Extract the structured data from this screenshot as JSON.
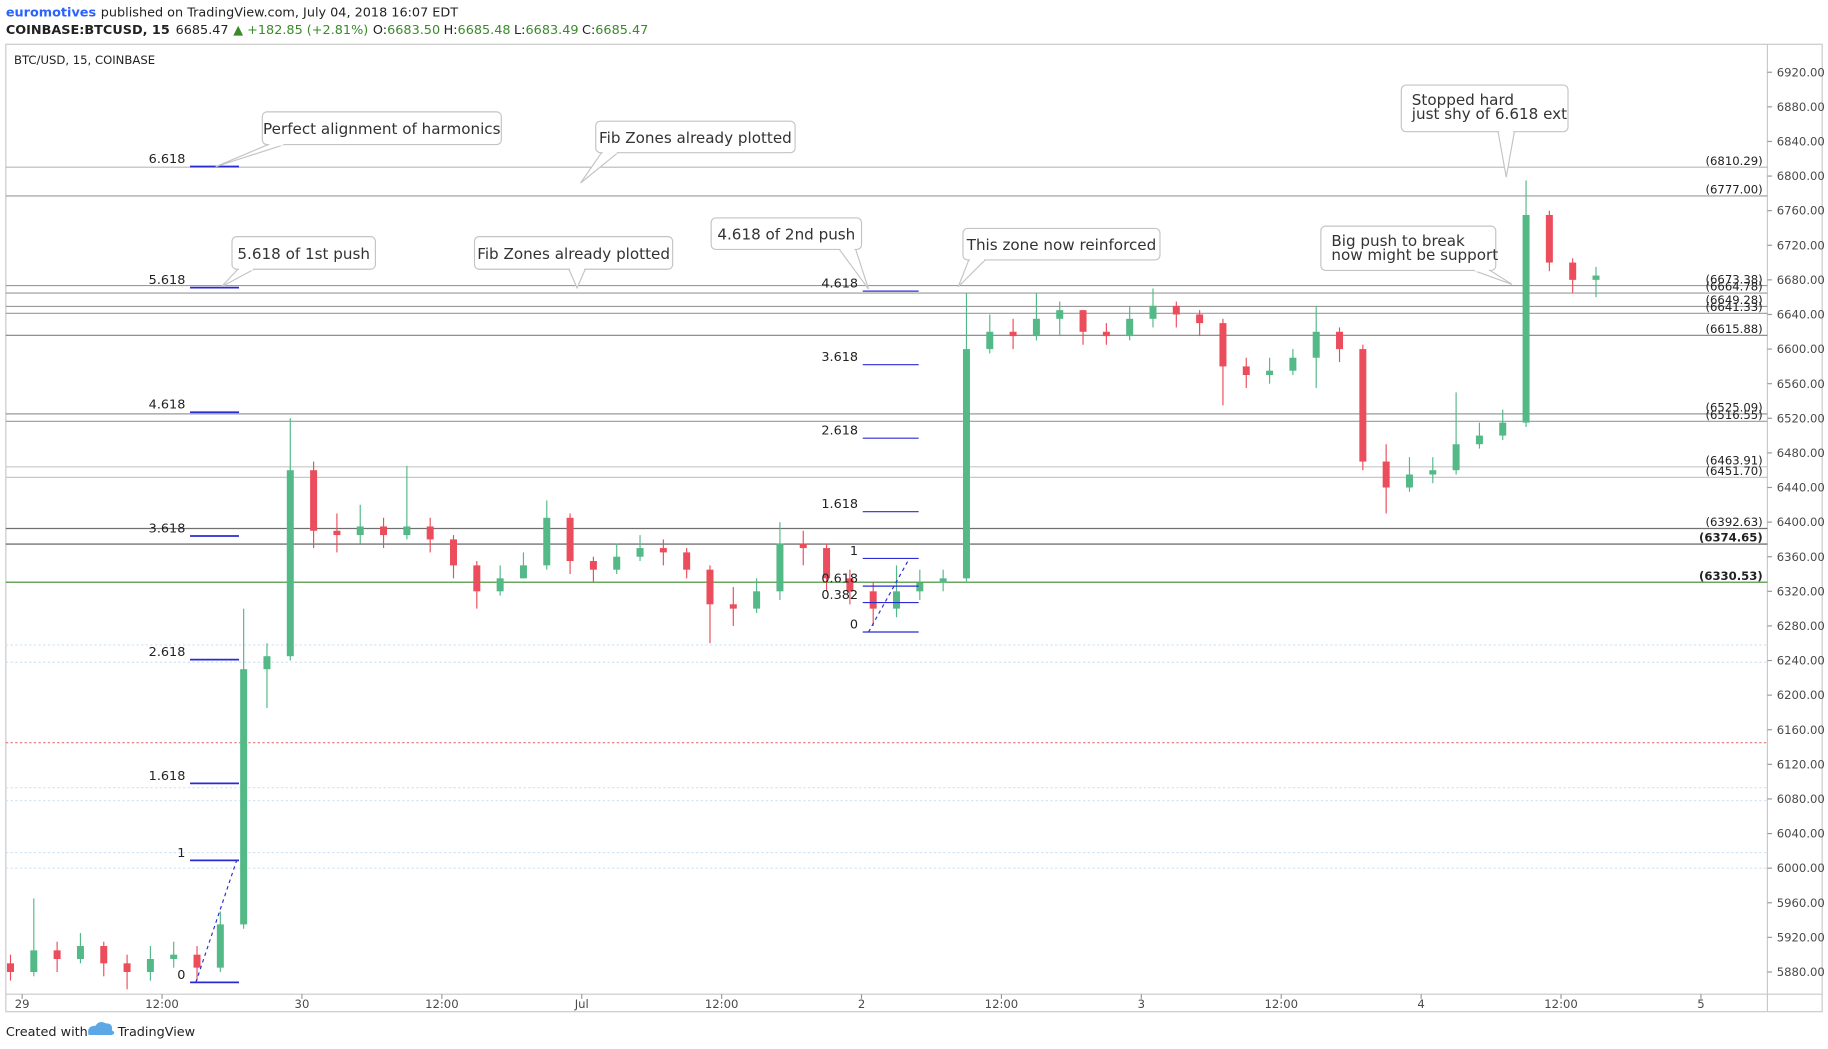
{
  "header": {
    "author": "euromotives",
    "published": "published on TradingView.com, July 04, 2018 16:07 EDT",
    "symbol": "COINBASE:BTCUSD, 15",
    "last": "6685.47",
    "change": "▲ +182.85 (+2.81%)",
    "ohlc": [
      {
        "label": "O:",
        "value": "6683.50"
      },
      {
        "label": "H:",
        "value": "6685.48"
      },
      {
        "label": "L:",
        "value": "6683.49"
      },
      {
        "label": "C:",
        "value": "6685.47"
      }
    ]
  },
  "footer": {
    "created": "Created with",
    "brand": "TradingView"
  },
  "chart_data": {
    "type": "candlestick",
    "title": "BTC/USD, 15, COINBASE",
    "up_color": "#53b987",
    "down_color": "#eb4d5c",
    "x": [
      -2,
      0,
      2,
      4,
      6,
      8,
      10,
      12,
      14,
      16,
      18,
      20,
      22,
      24,
      26,
      28,
      30,
      32,
      34,
      36,
      38,
      40,
      42,
      44,
      46,
      48,
      50,
      52,
      54,
      56,
      58,
      60,
      62,
      64,
      66,
      68,
      70,
      72,
      74,
      76,
      78,
      80,
      82,
      84,
      86,
      88,
      90,
      92,
      94,
      96,
      98,
      100,
      102,
      104,
      106,
      108,
      110,
      112,
      114,
      116,
      118,
      120,
      122,
      124,
      126,
      128,
      130,
      132,
      134
    ],
    "open": [
      5890,
      5880,
      5905,
      5895,
      5910,
      5890,
      5880,
      5895,
      5900,
      5885,
      5935,
      6230,
      6245,
      6460,
      6390,
      6385,
      6395,
      6385,
      6395,
      6380,
      6350,
      6320,
      6335,
      6350,
      6405,
      6355,
      6345,
      6360,
      6370,
      6365,
      6345,
      6305,
      6300,
      6320,
      6375,
      6370,
      6335,
      6320,
      6300,
      6320,
      6330,
      6335,
      6600,
      6620,
      6615,
      6635,
      6645,
      6620,
      6615,
      6635,
      6650,
      6640,
      6630,
      6580,
      6570,
      6575,
      6590,
      6620,
      6600,
      6470,
      6440,
      6455,
      6460,
      6490,
      6500,
      6515,
      6755,
      6700,
      6680
    ],
    "high": [
      5900,
      5965,
      5915,
      5925,
      5915,
      5900,
      5910,
      5915,
      5910,
      5950,
      6300,
      6260,
      6520,
      6470,
      6410,
      6420,
      6405,
      6465,
      6405,
      6385,
      6355,
      6350,
      6365,
      6425,
      6410,
      6360,
      6375,
      6385,
      6380,
      6370,
      6350,
      6325,
      6335,
      6400,
      6390,
      6375,
      6345,
      6330,
      6350,
      6345,
      6345,
      6665,
      6640,
      6635,
      6665,
      6655,
      6645,
      6630,
      6650,
      6670,
      6655,
      6645,
      6635,
      6590,
      6590,
      6600,
      6650,
      6625,
      6605,
      6490,
      6475,
      6475,
      6550,
      6515,
      6530,
      6795,
      6760,
      6705,
      6695
    ],
    "low": [
      5870,
      5875,
      5880,
      5890,
      5875,
      5860,
      5870,
      5885,
      5870,
      5880,
      5930,
      6185,
      6240,
      6370,
      6365,
      6375,
      6370,
      6380,
      6365,
      6335,
      6300,
      6315,
      6335,
      6345,
      6340,
      6330,
      6340,
      6355,
      6350,
      6335,
      6260,
      6280,
      6295,
      6310,
      6350,
      6320,
      6305,
      6280,
      6290,
      6310,
      6320,
      6330,
      6595,
      6600,
      6610,
      6615,
      6605,
      6605,
      6610,
      6625,
      6625,
      6615,
      6535,
      6555,
      6560,
      6570,
      6555,
      6585,
      6460,
      6410,
      6435,
      6445,
      6455,
      6485,
      6495,
      6510,
      6690,
      6665,
      6660
    ],
    "close": [
      5880,
      5905,
      5895,
      5910,
      5890,
      5880,
      5895,
      5900,
      5885,
      5935,
      6230,
      6245,
      6460,
      6390,
      6385,
      6395,
      6385,
      6395,
      6380,
      6350,
      6320,
      6335,
      6350,
      6405,
      6355,
      6345,
      6360,
      6370,
      6365,
      6345,
      6305,
      6300,
      6320,
      6375,
      6370,
      6335,
      6320,
      6300,
      6320,
      6330,
      6335,
      6600,
      6620,
      6615,
      6635,
      6645,
      6620,
      6615,
      6635,
      6650,
      6640,
      6630,
      6580,
      6570,
      6575,
      6590,
      6620,
      6600,
      6470,
      6440,
      6455,
      6460,
      6490,
      6500,
      6515,
      6755,
      6700,
      6680,
      6685
    ],
    "xlim": [
      -1.4,
      149.7
    ],
    "xticks": [
      {
        "value": 0,
        "label": "29"
      },
      {
        "value": 12,
        "label": "12:00"
      },
      {
        "value": 24,
        "label": "30"
      },
      {
        "value": 36,
        "label": "12:00"
      },
      {
        "value": 48,
        "label": "Jul"
      },
      {
        "value": 60,
        "label": "12:00"
      },
      {
        "value": 72,
        "label": "2"
      },
      {
        "value": 84,
        "label": "12:00"
      },
      {
        "value": 96,
        "label": "3"
      },
      {
        "value": 108,
        "label": "12:00"
      },
      {
        "value": 120,
        "label": "4"
      },
      {
        "value": 132,
        "label": "12:00"
      },
      {
        "value": 144,
        "label": "5"
      }
    ],
    "ylim": [
      5854.3,
      6952.3
    ],
    "yticks": [
      {
        "value": 5880,
        "label": "5880.00"
      },
      {
        "value": 5920,
        "label": "5920.00"
      },
      {
        "value": 5960,
        "label": "5960.00"
      },
      {
        "value": 6000,
        "label": "6000.00"
      },
      {
        "value": 6040,
        "label": "6040.00"
      },
      {
        "value": 6080,
        "label": "6080.00"
      },
      {
        "value": 6120,
        "label": "6120.00"
      },
      {
        "value": 6160,
        "label": "6160.00"
      },
      {
        "value": 6200,
        "label": "6200.00"
      },
      {
        "value": 6240,
        "label": "6240.00"
      },
      {
        "value": 6280,
        "label": "6280.00"
      },
      {
        "value": 6320,
        "label": "6320.00"
      },
      {
        "value": 6360,
        "label": "6360.00"
      },
      {
        "value": 6400,
        "label": "6400.00"
      },
      {
        "value": 6440,
        "label": "6440.00"
      },
      {
        "value": 6480,
        "label": "6480.00"
      },
      {
        "value": 6520,
        "label": "6520.00"
      },
      {
        "value": 6560,
        "label": "6560.00"
      },
      {
        "value": 6600,
        "label": "6600.00"
      },
      {
        "value": 6640,
        "label": "6640.00"
      },
      {
        "value": 6680,
        "label": "6680.00"
      },
      {
        "value": 6720,
        "label": "6720.00"
      },
      {
        "value": 6760,
        "label": "6760.00"
      },
      {
        "value": 6800,
        "label": "6800.00"
      },
      {
        "value": 6840,
        "label": "6840.00"
      },
      {
        "value": 6880,
        "label": "6880.00"
      },
      {
        "value": 6920,
        "label": "6920.00"
      }
    ],
    "grid": false,
    "levels": [
      {
        "value": 6810.29,
        "label": "(6810.29)",
        "color": "#b8b8b8"
      },
      {
        "value": 6777.0,
        "label": "(6777.00)",
        "color": "#9a9a9a"
      },
      {
        "value": 6673.38,
        "label": "(6673.38)",
        "color": "#9a9a9a"
      },
      {
        "value": 6664.78,
        "label": "(6664.78)",
        "color": "#9a9a9a"
      },
      {
        "value": 6649.28,
        "label": "(6649.28)",
        "color": "#9a9a9a"
      },
      {
        "value": 6641.33,
        "label": "(6641.33)",
        "color": "#9a9a9a"
      },
      {
        "value": 6615.88,
        "label": "(6615.88)",
        "color": "#808080"
      },
      {
        "value": 6525.09,
        "label": "(6525.09)",
        "color": "#9a9a9a"
      },
      {
        "value": 6516.55,
        "label": "(6516.55)",
        "color": "#9a9a9a"
      },
      {
        "value": 6463.91,
        "label": "(6463.91)",
        "color": "#c8c8c8"
      },
      {
        "value": 6451.7,
        "label": "(6451.70)",
        "color": "#c8c8c8"
      },
      {
        "value": 6392.63,
        "label": "(6392.63)",
        "color": "#707070"
      },
      {
        "value": 6374.65,
        "label": "(6374.65)",
        "color": "#555555"
      },
      {
        "value": 6330.53,
        "label": "(6330.53)",
        "color": "#3a8a2a"
      }
    ],
    "dotted_lines": [
      {
        "value": 6258,
        "color": "#cfe3f5"
      },
      {
        "value": 6238,
        "color": "#cfe3f5"
      },
      {
        "value": 6145,
        "color": "#e57373"
      },
      {
        "value": 6093,
        "color": "#cfe3f5"
      },
      {
        "value": 6078,
        "color": "#cfe3f5"
      },
      {
        "value": 6018,
        "color": "#cfe3f5"
      },
      {
        "value": 6000,
        "color": "#cfe3f5"
      }
    ],
    "fib_color": "#2b2bd6",
    "fib_sets": [
      [
        {
          "ratio": 6.618,
          "price": 6811
        },
        {
          "ratio": 5.618,
          "price": 6671
        },
        {
          "ratio": 4.618,
          "price": 6527
        },
        {
          "ratio": 3.618,
          "price": 6384
        },
        {
          "ratio": 2.618,
          "price": 6241
        },
        {
          "ratio": 1.618,
          "price": 6098
        },
        {
          "ratio": 1,
          "price": 6009
        },
        {
          "ratio": 0,
          "price": 5868
        }
      ],
      [
        {
          "ratio": 4.618,
          "price": 6667
        },
        {
          "ratio": 3.618,
          "price": 6582
        },
        {
          "ratio": 2.618,
          "price": 6497
        },
        {
          "ratio": 1.618,
          "price": 6412
        },
        {
          "ratio": 1,
          "price": 6358
        },
        {
          "ratio": 0.618,
          "price": 6326
        },
        {
          "ratio": 0.382,
          "price": 6307
        },
        {
          "ratio": 0,
          "price": 6273
        }
      ]
    ],
    "annotations": [
      [
        "Perfect alignment of harmonics"
      ],
      [
        "Fib Zones already plotted"
      ],
      [
        "5.618 of 1st push"
      ],
      [
        "Fib Zones already plotted"
      ],
      [
        "4.618 of 2nd push"
      ],
      [
        "This zone now reinforced"
      ],
      [
        "Stopped hard",
        "just shy of 6.618 ext"
      ],
      [
        "Big push to break",
        "now might be support"
      ]
    ]
  }
}
